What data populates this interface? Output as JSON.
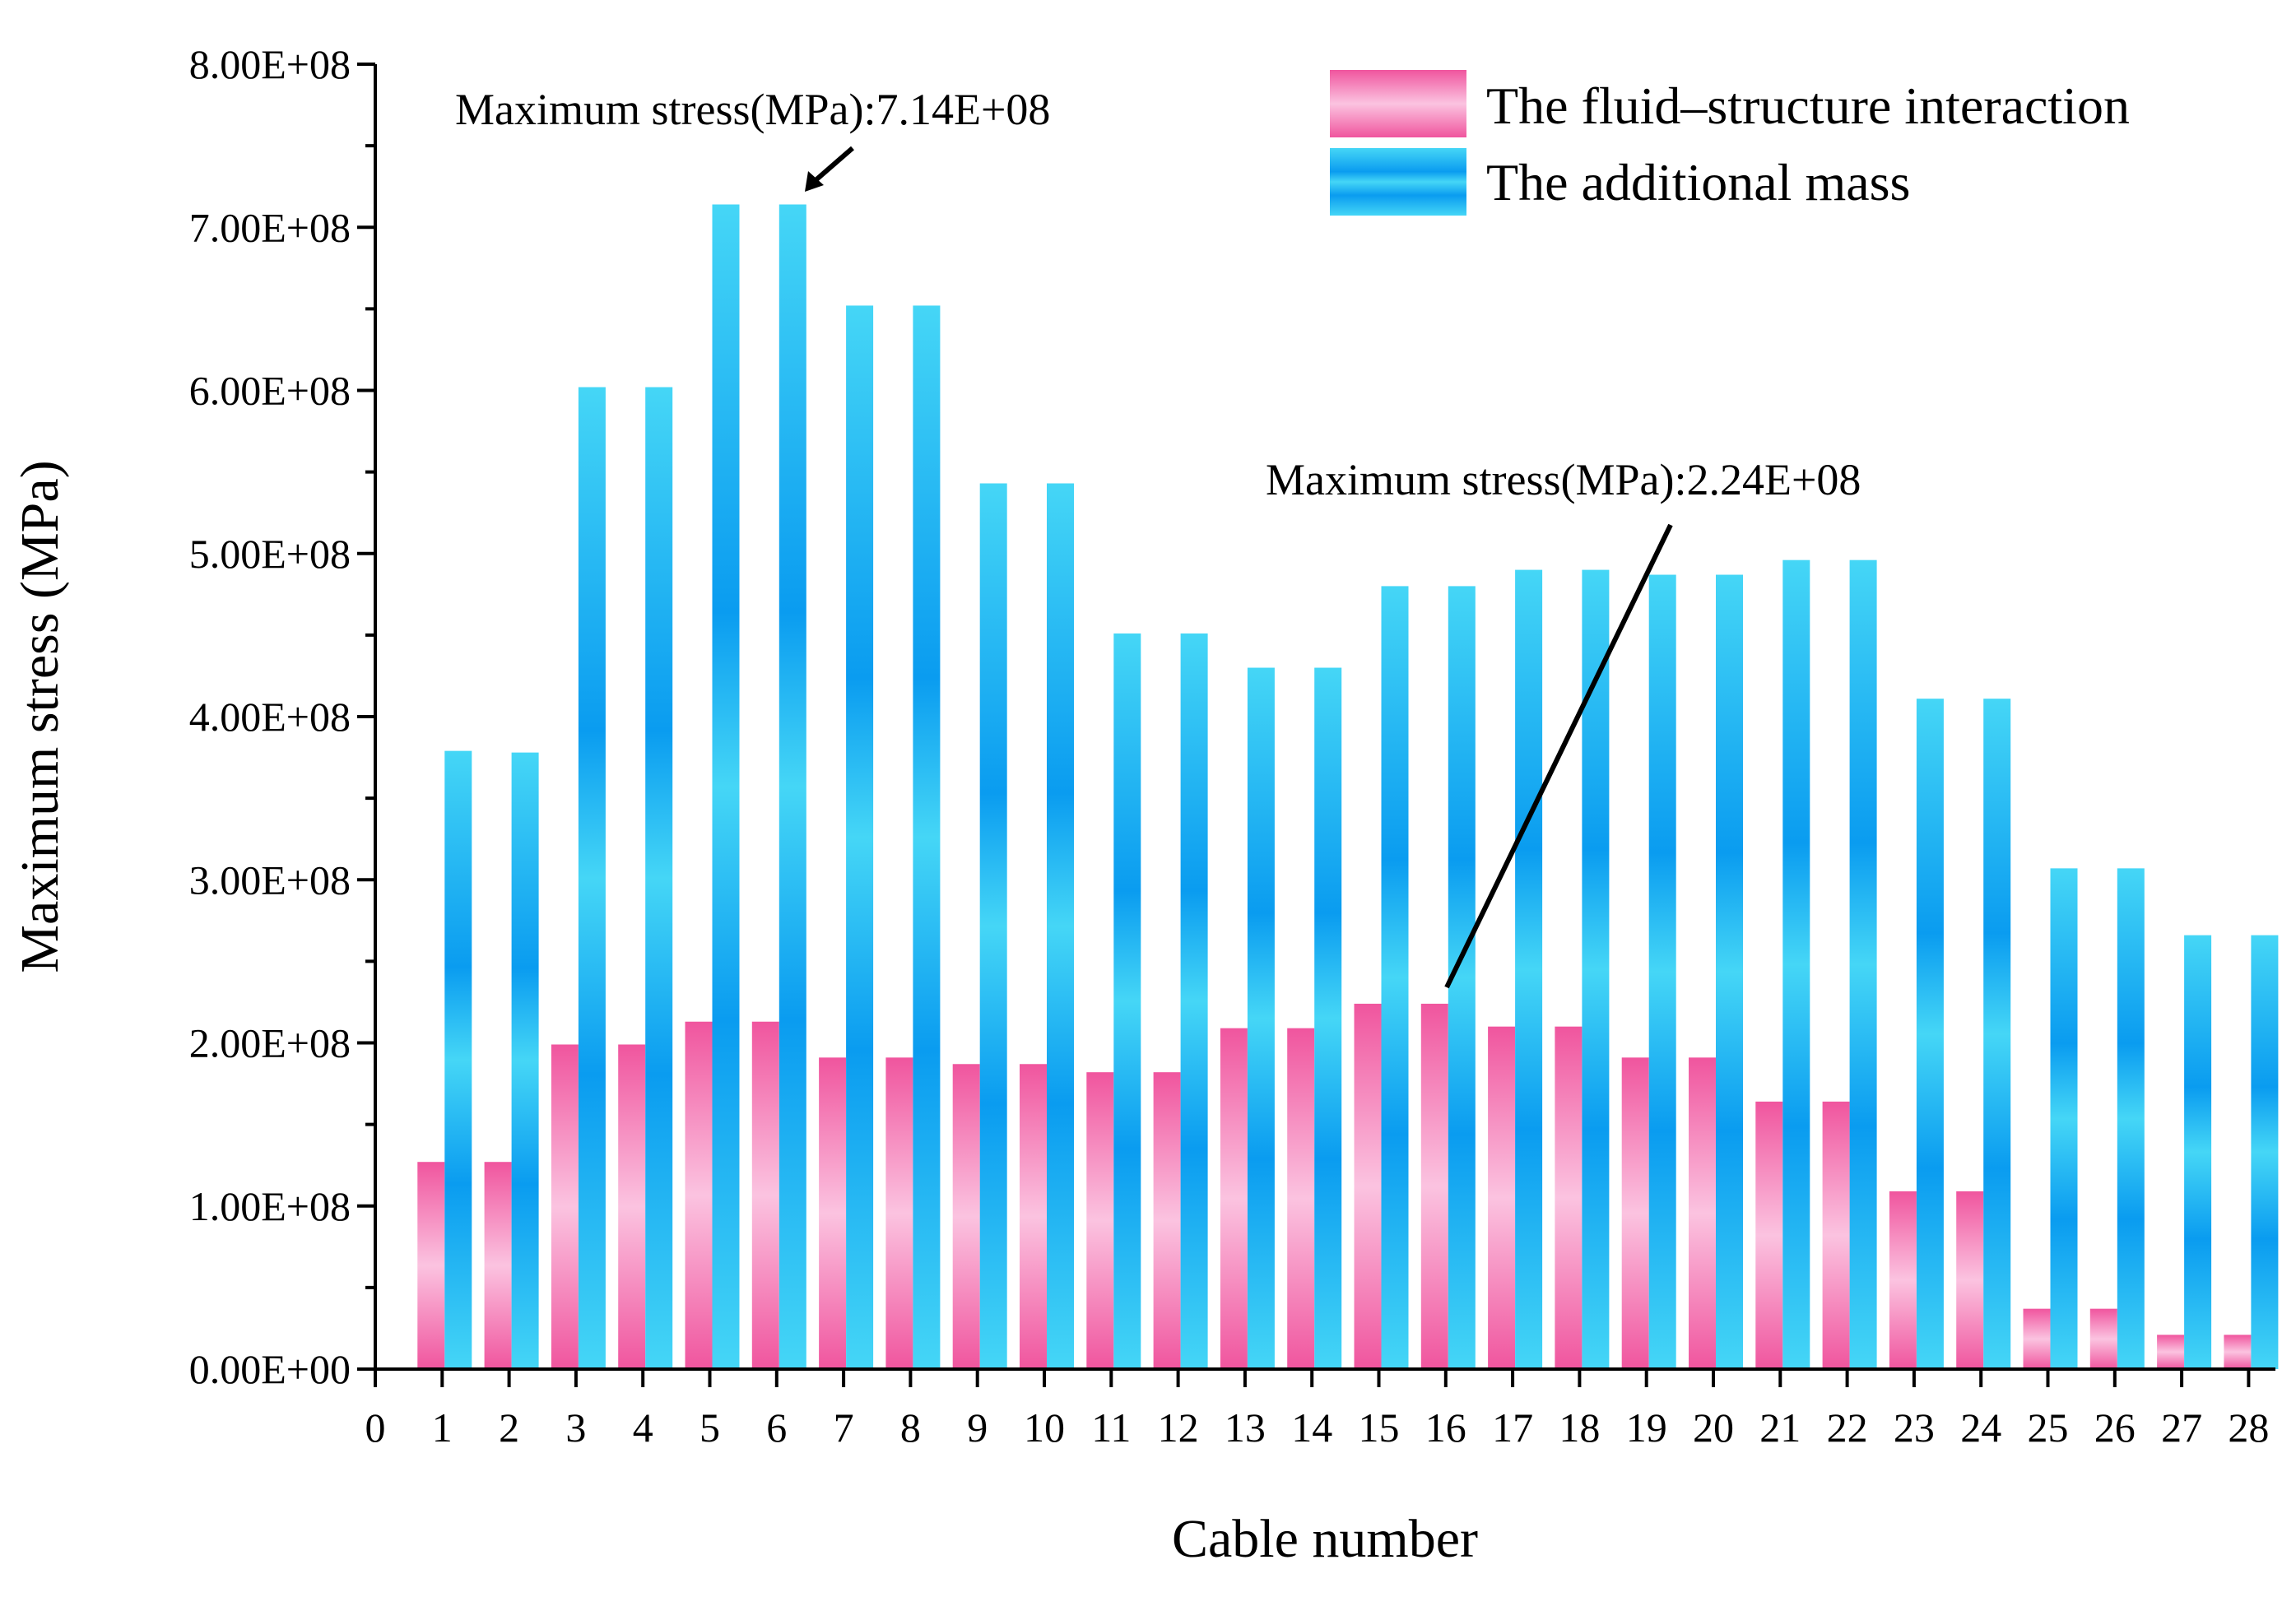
{
  "chart_data": {
    "type": "bar",
    "title": "",
    "xlabel": "Cable number",
    "ylabel": "Maximum stress (MPa)",
    "ylim": [
      0,
      800000000
    ],
    "xlim": [
      0,
      28.5
    ],
    "y_ticks": [
      0,
      100000000,
      200000000,
      300000000,
      400000000,
      500000000,
      600000000,
      700000000,
      800000000
    ],
    "y_tick_labels": [
      "0.00E+00",
      "1.00E+08",
      "2.00E+08",
      "3.00E+08",
      "4.00E+08",
      "5.00E+08",
      "6.00E+08",
      "7.00E+08",
      "8.00E+08"
    ],
    "x_tick_labels": [
      "0",
      "1",
      "2",
      "3",
      "4",
      "5",
      "6",
      "7",
      "8",
      "9",
      "10",
      "11",
      "12",
      "13",
      "14",
      "15",
      "16",
      "17",
      "18",
      "19",
      "20",
      "21",
      "22",
      "23",
      "24",
      "25",
      "26",
      "27",
      "28"
    ],
    "categories": [
      1,
      2,
      3,
      4,
      5,
      6,
      7,
      8,
      9,
      10,
      11,
      12,
      13,
      14,
      15,
      16,
      17,
      18,
      19,
      20,
      21,
      22,
      23,
      24,
      25,
      26,
      27,
      28
    ],
    "legend_position": "top-right",
    "series": [
      {
        "name": "The fluid–structure interaction",
        "color": "#f0559e",
        "color_light": "#fbc3e0",
        "values": [
          127000000,
          127000000,
          199000000,
          199000000,
          213000000,
          213000000,
          191000000,
          191000000,
          187000000,
          187000000,
          182000000,
          182000000,
          209000000,
          209000000,
          224000000,
          224000000,
          210000000,
          210000000,
          191000000,
          191000000,
          164000000,
          164000000,
          109000000,
          109000000,
          37000000,
          37000000,
          21000000,
          21000000
        ]
      },
      {
        "name": "The additional mass",
        "color": "#0a9cf0",
        "color_light": "#45d6f6",
        "values": [
          379000000,
          378000000,
          602000000,
          602000000,
          714000000,
          714000000,
          652000000,
          652000000,
          543000000,
          543000000,
          451000000,
          451000000,
          430000000,
          430000000,
          480000000,
          480000000,
          490000000,
          490000000,
          487000000,
          487000000,
          496000000,
          496000000,
          411000000,
          411000000,
          307000000,
          307000000,
          266000000,
          266000000
        ]
      }
    ],
    "annotations": [
      {
        "text": "Maximum stress(MPa):7.14E+08",
        "series": 1,
        "category": 6,
        "value": 714000000
      },
      {
        "text": "Maximum stress(MPa):2.24E+08",
        "series": 0,
        "category": 16,
        "value": 224000000
      }
    ]
  }
}
